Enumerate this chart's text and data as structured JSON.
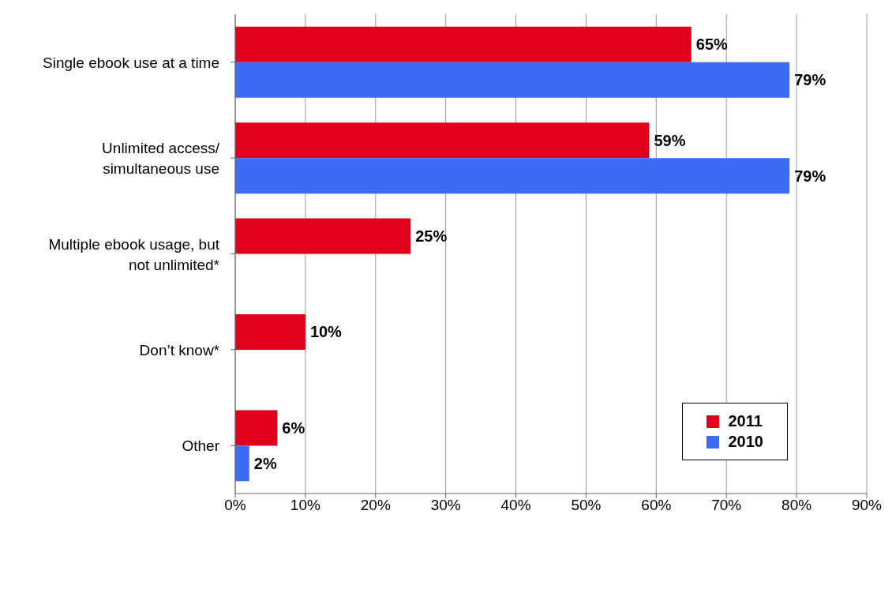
{
  "chart_data": {
    "type": "bar",
    "orientation": "horizontal",
    "categories": [
      "Single ebook use at a time",
      "Unlimited access/ simultaneous use",
      "Multiple ebook usage, but not unlimited*",
      "Don’t know*",
      "Other"
    ],
    "series": [
      {
        "name": "2011",
        "color": "#e0001b",
        "values": [
          65,
          59,
          25,
          10,
          6
        ],
        "value_labels": [
          "65%",
          "59%",
          "25%",
          "10%",
          "6%"
        ]
      },
      {
        "name": "2010",
        "color": "#3d6bf5",
        "values": [
          79,
          79,
          null,
          null,
          2
        ],
        "value_labels": [
          "79%",
          "79%",
          null,
          null,
          "2%"
        ]
      }
    ],
    "xlim": [
      0,
      90
    ],
    "xticks": [
      {
        "value": 0,
        "label": "0%"
      },
      {
        "value": 10,
        "label": "10%"
      },
      {
        "value": 20,
        "label": "20%"
      },
      {
        "value": 30,
        "label": "30%"
      },
      {
        "value": 40,
        "label": "40%"
      },
      {
        "value": 50,
        "label": "50%"
      },
      {
        "value": 60,
        "label": "60%"
      },
      {
        "value": 70,
        "label": "70%"
      },
      {
        "value": 80,
        "label": "80%"
      },
      {
        "value": 90,
        "label": "90%"
      }
    ],
    "grid": "x",
    "legend": "bottom right"
  }
}
